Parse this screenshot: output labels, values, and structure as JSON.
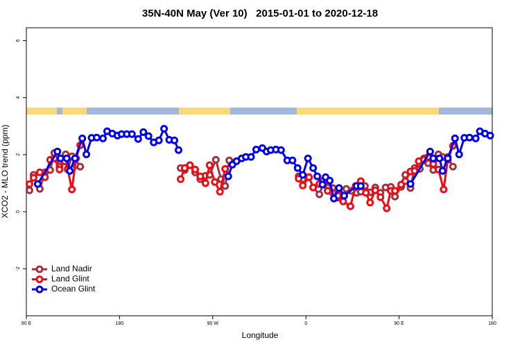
{
  "chart_data": {
    "type": "line",
    "title": "35N-40N May (Ver 10)   2015-01-01 to 2020-12-18",
    "xlabel": "Longitude",
    "ylabel": "XCO2 - MLO trend (ppm)",
    "xlim": [
      90,
      540
    ],
    "xticks": [
      {
        "value": 90,
        "label": "90 E"
      },
      180,
      {
        "value": 270,
        "label": "90 W"
      },
      {
        "value": 360,
        "label": "0"
      },
      {
        "value": 450,
        "label": "90 E"
      },
      {
        "value": 540,
        "label": "180"
      }
    ],
    "ylim": [
      -3.65,
      6.45
    ],
    "yticks": [
      -2,
      0,
      2,
      4,
      6
    ],
    "legend": "bottomleft",
    "series": [
      {
        "name": "Land Nadir",
        "color": "#a3303a",
        "x": [
          93,
          97,
          103,
          108,
          113,
          117,
          122,
          128,
          130,
          134,
          138,
          142,
          null,
          239,
          243,
          248,
          253,
          258,
          263,
          267,
          273,
          278,
          282,
          286,
          null,
          353,
          357,
          363,
          367,
          373,
          377,
          381,
          386,
          391,
          395,
          399,
          404,
          409,
          413,
          417,
          422,
          427,
          432,
          437,
          442,
          446,
          452,
          456,
          461,
          465,
          470,
          474,
          478,
          483,
          488,
          492,
          497,
          502
        ],
        "values": [
          0.75,
          1.29,
          0.8,
          1.38,
          1.46,
          2.06,
          1.58,
          2.01,
          1.5,
          1.94,
          1.63,
          1.58,
          null,
          1.53,
          1.46,
          1.63,
          1.38,
          1.14,
          1.26,
          1.29,
          1.82,
          1.14,
          0.9,
          1.8,
          null,
          1.24,
          1.14,
          1.21,
          0.85,
          0.61,
          1.0,
          0.85,
          0.83,
          0.49,
          0.7,
          0.8,
          0.73,
          0.66,
          0.7,
          0.9,
          0.68,
          0.85,
          0.66,
          0.85,
          0.87,
          0.53,
          0.87,
          1.29,
          0.83,
          1.53,
          1.5,
          1.87,
          1.7,
          1.46,
          2.01,
          1.92,
          1.92,
          1.58
        ]
      },
      {
        "name": "Land Glint",
        "color": "#ee0a14",
        "x": [
          93,
          97,
          103,
          108,
          113,
          117,
          122,
          127,
          130,
          134,
          138,
          142,
          null,
          239,
          243,
          248,
          253,
          258,
          263,
          267,
          272,
          277,
          282,
          null,
          353,
          357,
          363,
          367,
          373,
          377,
          381,
          386,
          391,
          396,
          403,
          408,
          413,
          418,
          422,
          427,
          432,
          438,
          442,
          446,
          452,
          456,
          461,
          465,
          469,
          474,
          478,
          483,
          488,
          493,
          497,
          502
        ],
        "values": [
          0.97,
          1.19,
          1.38,
          1.21,
          1.82,
          1.87,
          1.48,
          1.77,
          1.48,
          0.78,
          1.87,
          2.33,
          null,
          1.14,
          1.53,
          1.63,
          1.48,
          1.24,
          1.0,
          1.63,
          1.04,
          0.7,
          1.5,
          null,
          1.16,
          0.92,
          1.21,
          0.85,
          0.97,
          1.09,
          0.73,
          0.66,
          0.56,
          0.36,
          0.19,
          0.9,
          1.07,
          0.66,
          0.32,
          0.75,
          0.51,
          0.12,
          0.73,
          0.73,
          0.95,
          1.07,
          1.41,
          1.43,
          1.77,
          1.82,
          1.92,
          1.67,
          1.48,
          0.78,
          1.82,
          2.31
        ]
      },
      {
        "name": "Ocean Glint",
        "color": "#0000ee",
        "x": [
          101,
          120,
          123,
          129,
          132,
          137,
          144,
          148,
          153,
          158,
          164,
          168,
          173,
          178,
          182,
          187,
          192,
          198,
          203,
          208,
          213,
          218,
          223,
          228,
          233,
          237,
          null,
          285,
          289,
          293,
          298,
          302,
          307,
          312,
          318,
          322,
          326,
          331,
          336,
          342,
          347,
          352,
          357,
          362,
          367,
          371,
          376,
          379,
          383,
          387,
          392,
          397,
          409,
          413,
          null,
          461,
          480,
          483,
          489,
          492,
          497,
          504,
          508,
          513,
          518,
          524,
          528,
          533,
          538
        ],
        "values": [
          0.97,
          2.11,
          1.87,
          1.87,
          1.43,
          1.87,
          2.57,
          2.01,
          2.59,
          2.6,
          2.57,
          2.82,
          2.74,
          2.67,
          2.72,
          2.72,
          2.72,
          2.55,
          2.79,
          2.65,
          2.43,
          2.5,
          2.91,
          2.52,
          2.5,
          2.16,
          null,
          1.24,
          1.65,
          1.77,
          1.87,
          1.92,
          1.92,
          2.18,
          2.23,
          2.11,
          2.16,
          2.18,
          2.16,
          1.8,
          1.8,
          1.53,
          1.29,
          1.87,
          1.53,
          1.24,
          0.95,
          1.21,
          1.09,
          0.46,
          0.83,
          0.56,
          0.9,
          0.9,
          null,
          0.97,
          2.11,
          1.87,
          1.87,
          1.43,
          1.87,
          2.57,
          2.01,
          2.59,
          2.6,
          2.57,
          2.82,
          2.74,
          2.67
        ]
      }
    ]
  }
}
